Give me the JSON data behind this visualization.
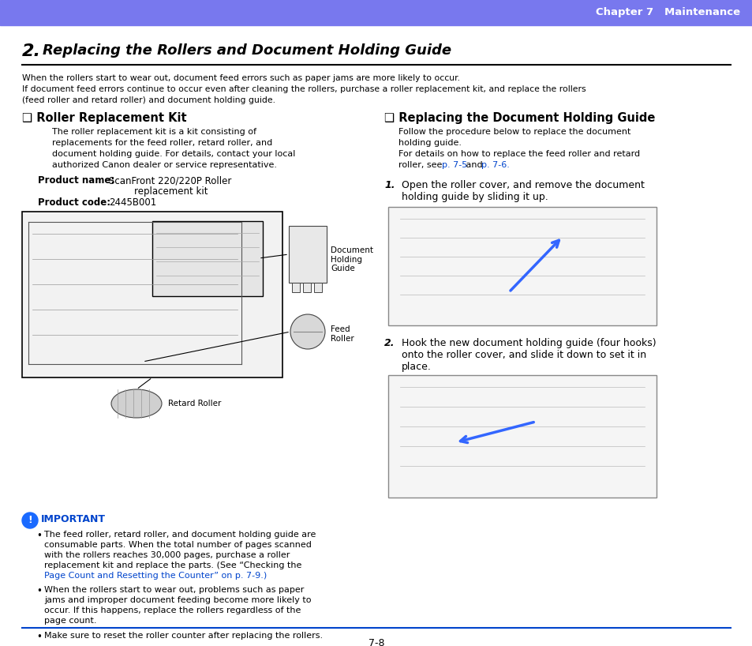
{
  "page_bg": "#ffffff",
  "header_bg": "#7878ee",
  "header_text": "Chapter 7   Maintenance",
  "header_text_color": "#ffffff",
  "title_number": "2.",
  "title_text": " Replacing the Rollers and Document Holding Guide",
  "intro_lines": [
    "When the rollers start to wear out, document feed errors such as paper jams are more likely to occur.",
    "If document feed errors continue to occur even after cleaning the rollers, purchase a roller replacement kit, and replace the rollers",
    "(feed roller and retard roller) and document holding guide."
  ],
  "left_section_title": "❑ Roller Replacement Kit",
  "left_body_lines": [
    "The roller replacement kit is a kit consisting of",
    "replacements for the feed roller, retard roller, and",
    "document holding guide. For details, contact your local",
    "authorized Canon dealer or service representative."
  ],
  "product_name_label": "Product name:",
  "product_name_value1": "ScanFront 220/220P Roller",
  "product_name_value2": "replacement kit",
  "product_code_label": "Product code:",
  "product_code_value": "2445B001",
  "right_section_title": "❑ Replacing the Document Holding Guide",
  "right_intro_lines": [
    "Follow the procedure below to replace the document",
    "holding guide.",
    "For details on how to replace the feed roller and retard",
    "roller, see p. 7-5 and p. 7-6."
  ],
  "right_step1_num": "1.",
  "right_step1_text_line1": "Open the roller cover, and remove the document",
  "right_step1_text_line2": "holding guide by sliding it up.",
  "right_step2_num": "2.",
  "right_step2_text_line1": "Hook the new document holding guide (four hooks)",
  "right_step2_text_line2": "onto the roller cover, and slide it down to set it in",
  "right_step2_text_line3": "place.",
  "important_label": "IMPORTANT",
  "important_icon_color": "#1a6aff",
  "important_text_color": "#0044cc",
  "bullet1_lines": [
    "The feed roller, retard roller, and document holding guide are",
    "consumable parts. When the total number of pages scanned",
    "with the rollers reaches 30,000 pages, purchase a roller",
    "replacement kit and replace the parts. (See “Checking the"
  ],
  "bullet1_link_line": "Page Count and Resetting the Counter” on p. 7-9.)",
  "bullet2_lines": [
    "When the rollers start to wear out, problems such as paper",
    "jams and improper document feeding become more likely to",
    "occur. If this happens, replace the rollers regardless of the",
    "page count."
  ],
  "bullet3_line": "Make sure to reset the roller counter after replacing the rollers.",
  "footer_text": "7-8",
  "link_color": "#0044cc",
  "divider_color": "#0044cc"
}
